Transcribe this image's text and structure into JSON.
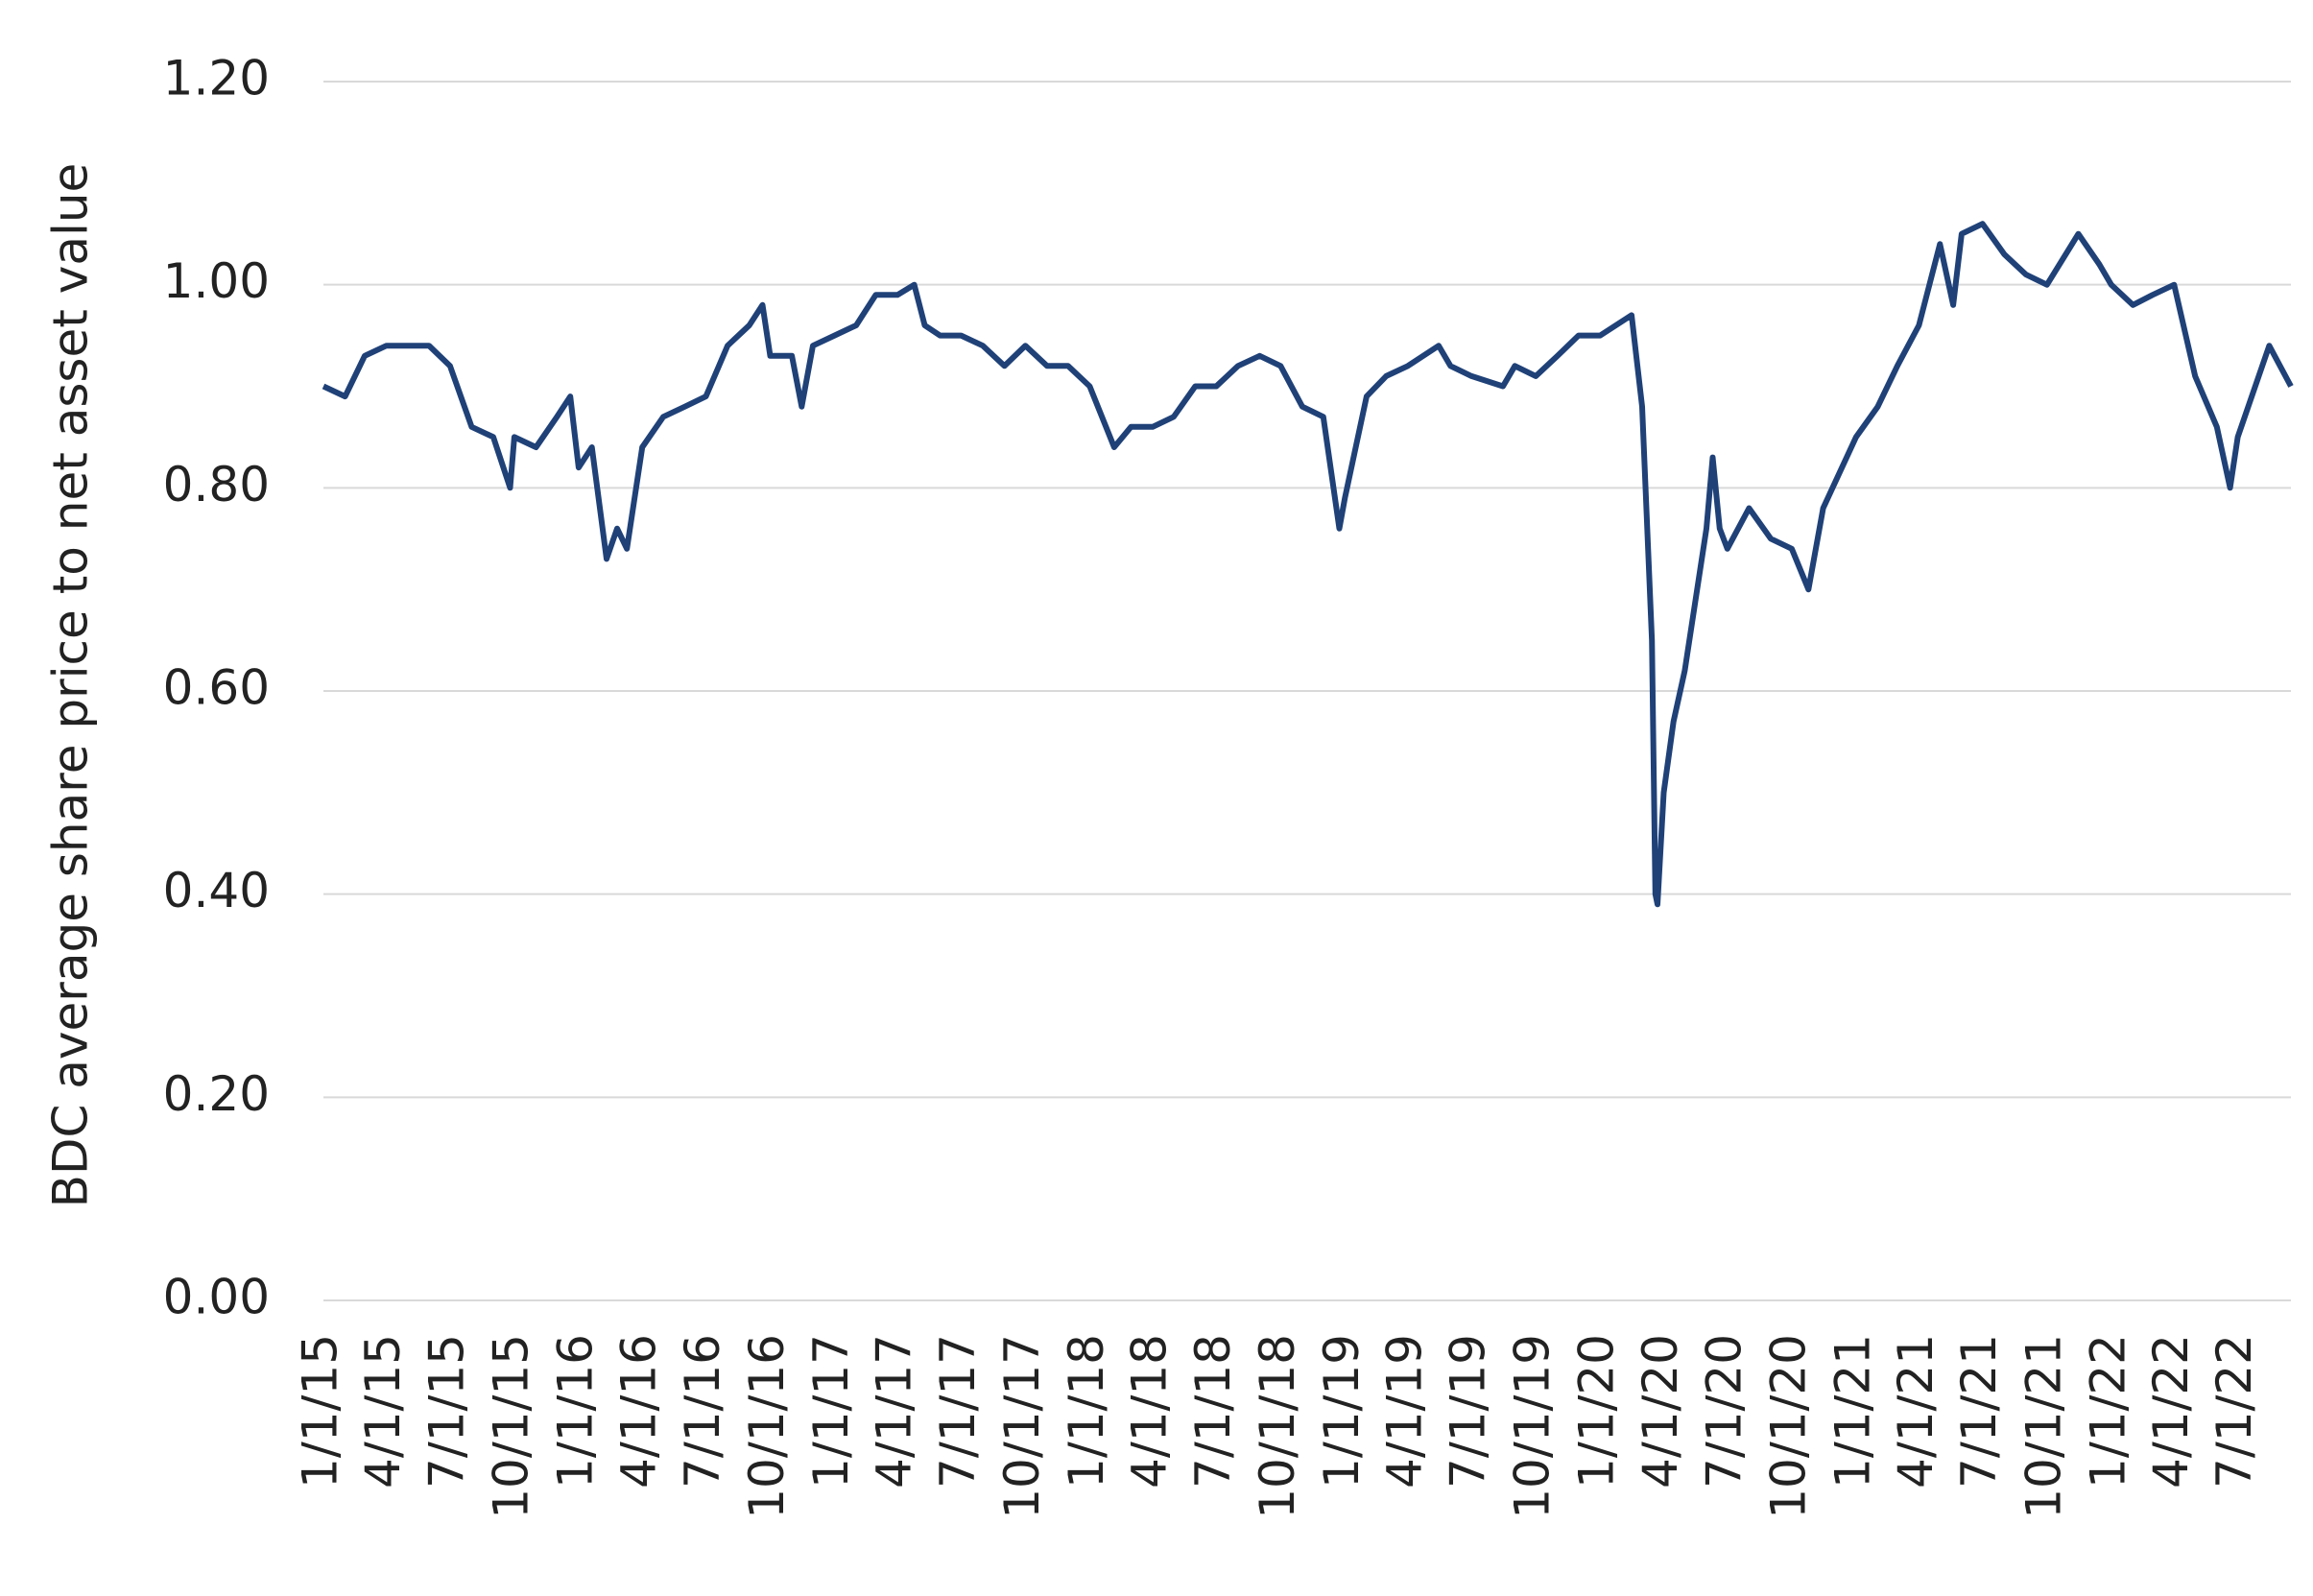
{
  "chart_data": {
    "type": "line",
    "ylabel": "BDC average share price to net asset value",
    "x": [
      "1/1/15",
      "2/1/15",
      "3/1/15",
      "4/1/15",
      "5/1/15",
      "6/1/15",
      "7/1/15",
      "8/1/15",
      "9/1/15",
      "9/25/15",
      "10/1/15",
      "11/1/15",
      "12/1/15",
      "12/20/15",
      "1/1/16",
      "1/20/16",
      "2/10/16",
      "2/25/16",
      "3/10/16",
      "4/1/16",
      "5/1/16",
      "6/1/16",
      "7/1/16",
      "8/1/16",
      "9/1/16",
      "9/20/16",
      "10/1/16",
      "11/1/16",
      "11/15/16",
      "12/1/16",
      "1/1/17",
      "2/1/17",
      "3/1/17",
      "4/1/17",
      "4/25/17",
      "5/10/17",
      "6/1/17",
      "7/1/17",
      "8/1/17",
      "9/1/17",
      "10/1/17",
      "11/1/17",
      "12/1/17",
      "1/1/18",
      "2/5/18",
      "3/1/18",
      "4/1/18",
      "5/1/18",
      "6/1/18",
      "7/1/18",
      "8/1/18",
      "9/1/18",
      "10/1/18",
      "11/1/18",
      "12/1/18",
      "12/24/18",
      "1/1/19",
      "2/1/19",
      "3/1/19",
      "4/1/19",
      "5/15/19",
      "6/1/19",
      "7/1/19",
      "8/15/19",
      "9/1/19",
      "10/1/19",
      "11/1/19",
      "12/1/19",
      "1/1/20",
      "2/15/20",
      "3/1/20",
      "3/15/20",
      "3/20/20",
      "3/23/20",
      "4/1/20",
      "4/15/20",
      "5/1/20",
      "6/1/20",
      "6/10/20",
      "6/20/20",
      "7/1/20",
      "8/1/20",
      "9/1/20",
      "10/1/20",
      "10/25/20",
      "11/15/20",
      "1/1/21",
      "2/1/21",
      "3/1/21",
      "4/1/21",
      "5/1/21",
      "5/20/21",
      "6/1/21",
      "7/1/21",
      "8/1/21",
      "9/1/21",
      "10/1/21",
      "11/15/21",
      "12/15/21",
      "1/1/22",
      "2/1/22",
      "3/1/22",
      "4/1/22",
      "5/1/22",
      "6/1/22",
      "6/20/22",
      "7/1/22",
      "8/15/22",
      "9/15/22"
    ],
    "series": [
      {
        "color": "#1f4178",
        "values": [
          0.9,
          0.89,
          0.93,
          0.94,
          0.94,
          0.94,
          0.92,
          0.86,
          0.85,
          0.8,
          0.85,
          0.84,
          0.87,
          0.89,
          0.82,
          0.84,
          0.73,
          0.76,
          0.74,
          0.84,
          0.87,
          0.88,
          0.89,
          0.94,
          0.96,
          0.98,
          0.93,
          0.93,
          0.88,
          0.94,
          0.95,
          0.96,
          0.99,
          0.99,
          1.0,
          0.96,
          0.95,
          0.95,
          0.94,
          0.92,
          0.94,
          0.92,
          0.92,
          0.9,
          0.84,
          0.86,
          0.86,
          0.87,
          0.9,
          0.9,
          0.92,
          0.93,
          0.92,
          0.88,
          0.87,
          0.76,
          0.79,
          0.89,
          0.91,
          0.92,
          0.94,
          0.92,
          0.91,
          0.9,
          0.92,
          0.91,
          0.93,
          0.95,
          0.95,
          0.97,
          0.88,
          0.65,
          0.4,
          0.39,
          0.5,
          0.57,
          0.62,
          0.76,
          0.83,
          0.76,
          0.74,
          0.78,
          0.75,
          0.74,
          0.7,
          0.78,
          0.85,
          0.88,
          0.92,
          0.96,
          1.04,
          0.98,
          1.05,
          1.06,
          1.03,
          1.01,
          1.0,
          1.05,
          1.02,
          1.0,
          0.98,
          0.99,
          1.0,
          0.91,
          0.86,
          0.8,
          0.85,
          0.94,
          0.9
        ]
      }
    ],
    "xlim": [
      "1/1/15",
      "9/15/22"
    ],
    "xticks": [
      "1/1/15",
      "4/1/15",
      "7/1/15",
      "10/1/15",
      "1/1/16",
      "4/1/16",
      "7/1/16",
      "10/1/16",
      "1/1/17",
      "4/1/17",
      "7/1/17",
      "10/1/17",
      "1/1/18",
      "4/1/18",
      "7/1/18",
      "10/1/18",
      "1/1/19",
      "4/1/19",
      "7/1/19",
      "10/1/19",
      "1/1/20",
      "4/1/20",
      "7/1/20",
      "10/1/20",
      "1/1/21",
      "4/1/21",
      "7/1/21",
      "10/1/21",
      "1/1/22",
      "4/1/22",
      "7/1/22"
    ],
    "ylim": [
      0,
      1.2
    ],
    "yticks": [
      {
        "value": 0,
        "label": "0.00"
      },
      {
        "value": 0.2,
        "label": "0.20"
      },
      {
        "value": 0.4,
        "label": "0.40"
      },
      {
        "value": 0.6,
        "label": "0.60"
      },
      {
        "value": 0.8,
        "label": "0.80"
      },
      {
        "value": 1,
        "label": "1.00"
      },
      {
        "value": 1.2,
        "label": "1.20"
      }
    ],
    "grid": true
  }
}
